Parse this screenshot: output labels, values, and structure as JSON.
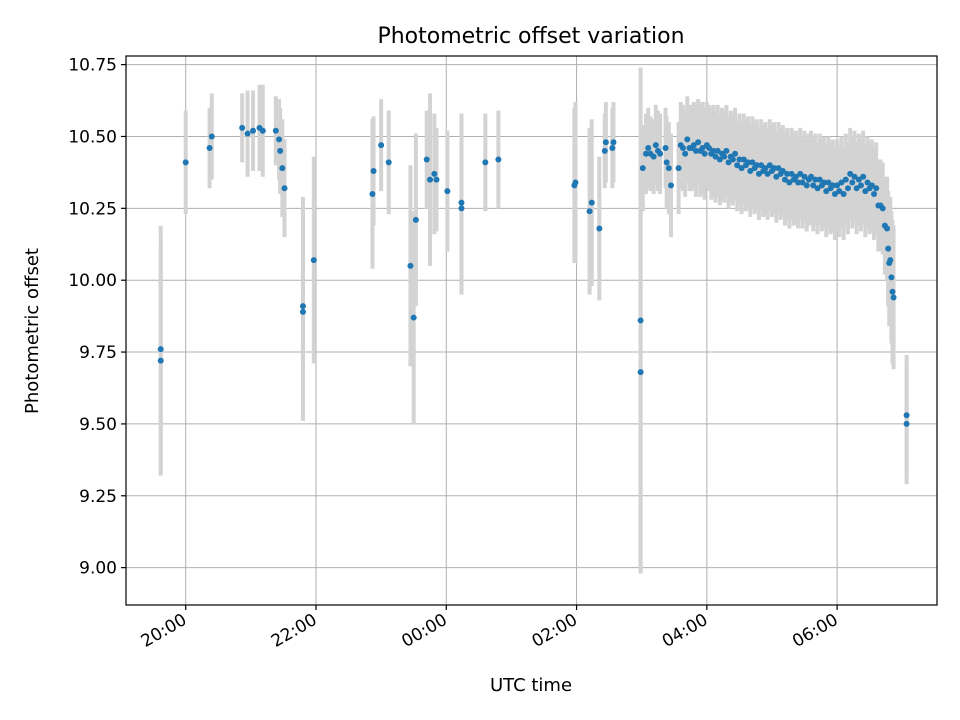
{
  "chart_data": {
    "type": "scatter",
    "title": "Photometric offset variation",
    "xlabel": "UTC time",
    "ylabel": "Photometric offset",
    "grid": true,
    "x_unit": "UTC time (HH:MM, spanning two nights: 19:00 to 07:30)",
    "xlim": [
      "19:05",
      "07:32"
    ],
    "ylim": [
      8.87,
      10.78
    ],
    "x_ticks": [
      "20:00",
      "22:00",
      "00:00",
      "02:00",
      "04:00",
      "06:00"
    ],
    "y_ticks": [
      "9.00",
      "9.25",
      "9.50",
      "9.75",
      "10.00",
      "10.25",
      "10.50",
      "10.75"
    ],
    "marker_color": "#1f77b4",
    "errorbar_color": "#d3d3d3",
    "series": [
      {
        "points": [
          [
            "19:37",
            9.76,
            0.43
          ],
          [
            "19:37",
            9.72,
            0.4
          ],
          [
            "20:00",
            10.41,
            0.18
          ],
          [
            "20:22",
            10.46,
            0.14
          ],
          [
            "20:24",
            10.5,
            0.15
          ],
          [
            "20:52",
            10.53,
            0.12
          ],
          [
            "20:57",
            10.51,
            0.15
          ],
          [
            "21:02",
            10.52,
            0.14
          ],
          [
            "21:08",
            10.53,
            0.15
          ],
          [
            "21:11",
            10.52,
            0.16
          ],
          [
            "21:23",
            10.52,
            0.12
          ],
          [
            "21:26",
            10.49,
            0.14
          ],
          [
            "21:27",
            10.45,
            0.15
          ],
          [
            "21:29",
            10.39,
            0.17
          ],
          [
            "21:31",
            10.32,
            0.17
          ],
          [
            "21:48",
            9.89,
            0.38
          ],
          [
            "21:48",
            9.91,
            0.38
          ],
          [
            "21:58",
            10.07,
            0.36
          ],
          [
            "22:52",
            10.3,
            0.26
          ],
          [
            "22:53",
            10.38,
            0.19
          ],
          [
            "23:00",
            10.47,
            0.16
          ],
          [
            "23:07",
            10.41,
            0.18
          ],
          [
            "23:27",
            10.05,
            0.35
          ],
          [
            "23:30",
            9.87,
            0.37
          ],
          [
            "23:32",
            10.21,
            0.3
          ],
          [
            "23:42",
            10.42,
            0.17
          ],
          [
            "23:45",
            10.35,
            0.3
          ],
          [
            "23:49",
            10.37,
            0.21
          ],
          [
            "23:51",
            10.35,
            0.18
          ],
          [
            "00:01",
            10.31,
            0.21
          ],
          [
            "00:14",
            10.27,
            0.31
          ],
          [
            "00:14",
            10.25,
            0.3
          ],
          [
            "00:36",
            10.41,
            0.17
          ],
          [
            "00:48",
            10.42,
            0.17
          ],
          [
            "01:58",
            10.33,
            0.27
          ],
          [
            "01:59",
            10.34,
            0.28
          ],
          [
            "02:12",
            10.24,
            0.29
          ],
          [
            "02:14",
            10.27,
            0.29
          ],
          [
            "02:21",
            10.18,
            0.25
          ],
          [
            "02:26",
            10.45,
            0.13
          ],
          [
            "02:27",
            10.48,
            0.14
          ],
          [
            "02:33",
            10.46,
            0.14
          ],
          [
            "02:34",
            10.48,
            0.14
          ],
          [
            "02:59",
            9.86,
            0.88
          ],
          [
            "02:59",
            9.68,
            0.7
          ],
          [
            "03:01",
            10.39,
            0.15
          ],
          [
            "03:04",
            10.44,
            0.14
          ],
          [
            "03:06",
            10.46,
            0.14
          ],
          [
            "03:08",
            10.44,
            0.13
          ],
          [
            "03:11",
            10.43,
            0.13
          ],
          [
            "03:13",
            10.47,
            0.14
          ],
          [
            "03:15",
            10.45,
            0.14
          ],
          [
            "03:17",
            10.44,
            0.14
          ],
          [
            "03:22",
            10.46,
            0.14
          ],
          [
            "03:23",
            10.41,
            0.16
          ],
          [
            "03:25",
            10.39,
            0.16
          ],
          [
            "03:27",
            10.33,
            0.18
          ],
          [
            "03:34",
            10.39,
            0.16
          ],
          [
            "03:36",
            10.47,
            0.15
          ],
          [
            "03:38",
            10.46,
            0.15
          ],
          [
            "03:40",
            10.44,
            0.15
          ],
          [
            "03:42",
            10.49,
            0.15
          ],
          [
            "03:44",
            10.46,
            0.15
          ],
          [
            "03:46",
            10.46,
            0.15
          ],
          [
            "03:48",
            10.47,
            0.15
          ],
          [
            "03:50",
            10.45,
            0.16
          ],
          [
            "03:52",
            10.48,
            0.15
          ],
          [
            "03:54",
            10.45,
            0.16
          ],
          [
            "03:56",
            10.46,
            0.16
          ],
          [
            "03:58",
            10.44,
            0.16
          ],
          [
            "04:00",
            10.47,
            0.15
          ],
          [
            "04:02",
            10.46,
            0.15
          ],
          [
            "04:04",
            10.44,
            0.16
          ],
          [
            "04:06",
            10.45,
            0.16
          ],
          [
            "04:08",
            10.43,
            0.16
          ],
          [
            "04:10",
            10.45,
            0.16
          ],
          [
            "04:12",
            10.42,
            0.16
          ],
          [
            "04:14",
            10.44,
            0.16
          ],
          [
            "04:16",
            10.43,
            0.16
          ],
          [
            "04:18",
            10.45,
            0.16
          ],
          [
            "04:20",
            10.41,
            0.16
          ],
          [
            "04:22",
            10.43,
            0.16
          ],
          [
            "04:24",
            10.42,
            0.16
          ],
          [
            "04:26",
            10.44,
            0.16
          ],
          [
            "04:28",
            10.4,
            0.16
          ],
          [
            "04:30",
            10.42,
            0.16
          ],
          [
            "04:32",
            10.39,
            0.16
          ],
          [
            "04:34",
            10.42,
            0.16
          ],
          [
            "04:36",
            10.4,
            0.16
          ],
          [
            "04:38",
            10.41,
            0.16
          ],
          [
            "04:40",
            10.38,
            0.16
          ],
          [
            "04:42",
            10.41,
            0.16
          ],
          [
            "04:44",
            10.39,
            0.16
          ],
          [
            "04:46",
            10.4,
            0.16
          ],
          [
            "04:48",
            10.37,
            0.16
          ],
          [
            "04:50",
            10.4,
            0.16
          ],
          [
            "04:52",
            10.38,
            0.16
          ],
          [
            "04:54",
            10.39,
            0.16
          ],
          [
            "04:56",
            10.37,
            0.16
          ],
          [
            "04:58",
            10.4,
            0.16
          ],
          [
            "05:00",
            10.38,
            0.16
          ],
          [
            "05:02",
            10.39,
            0.16
          ],
          [
            "05:04",
            10.36,
            0.16
          ],
          [
            "05:06",
            10.39,
            0.16
          ],
          [
            "05:08",
            10.37,
            0.16
          ],
          [
            "05:10",
            10.38,
            0.16
          ],
          [
            "05:12",
            10.35,
            0.16
          ],
          [
            "05:14",
            10.37,
            0.16
          ],
          [
            "05:16",
            10.34,
            0.16
          ],
          [
            "05:18",
            10.37,
            0.16
          ],
          [
            "05:20",
            10.35,
            0.16
          ],
          [
            "05:22",
            10.36,
            0.16
          ],
          [
            "05:24",
            10.34,
            0.16
          ],
          [
            "05:26",
            10.37,
            0.16
          ],
          [
            "05:28",
            10.34,
            0.16
          ],
          [
            "05:30",
            10.36,
            0.16
          ],
          [
            "05:32",
            10.33,
            0.16
          ],
          [
            "05:34",
            10.35,
            0.16
          ],
          [
            "05:36",
            10.36,
            0.16
          ],
          [
            "05:38",
            10.33,
            0.16
          ],
          [
            "05:40",
            10.35,
            0.16
          ],
          [
            "05:42",
            10.32,
            0.16
          ],
          [
            "05:44",
            10.35,
            0.16
          ],
          [
            "05:46",
            10.33,
            0.16
          ],
          [
            "05:48",
            10.34,
            0.16
          ],
          [
            "05:50",
            10.31,
            0.16
          ],
          [
            "05:52",
            10.34,
            0.16
          ],
          [
            "05:54",
            10.32,
            0.16
          ],
          [
            "05:56",
            10.33,
            0.16
          ],
          [
            "05:58",
            10.3,
            0.16
          ],
          [
            "06:00",
            10.33,
            0.16
          ],
          [
            "06:02",
            10.31,
            0.16
          ],
          [
            "06:04",
            10.34,
            0.16
          ],
          [
            "06:06",
            10.3,
            0.16
          ],
          [
            "06:08",
            10.35,
            0.16
          ],
          [
            "06:10",
            10.32,
            0.16
          ],
          [
            "06:12",
            10.37,
            0.16
          ],
          [
            "06:14",
            10.34,
            0.16
          ],
          [
            "06:16",
            10.36,
            0.16
          ],
          [
            "06:18",
            10.32,
            0.16
          ],
          [
            "06:20",
            10.35,
            0.16
          ],
          [
            "06:22",
            10.33,
            0.16
          ],
          [
            "06:24",
            10.36,
            0.16
          ],
          [
            "06:26",
            10.31,
            0.16
          ],
          [
            "06:28",
            10.34,
            0.16
          ],
          [
            "06:30",
            10.32,
            0.16
          ],
          [
            "06:32",
            10.33,
            0.16
          ],
          [
            "06:34",
            10.3,
            0.16
          ],
          [
            "06:36",
            10.32,
            0.16
          ],
          [
            "06:38",
            10.26,
            0.16
          ],
          [
            "06:40",
            10.26,
            0.16
          ],
          [
            "06:42",
            10.25,
            0.16
          ],
          [
            "06:44",
            10.19,
            0.17
          ],
          [
            "06:46",
            10.18,
            0.18
          ],
          [
            "06:47",
            10.11,
            0.2
          ],
          [
            "06:48",
            10.06,
            0.22
          ],
          [
            "06:49",
            10.07,
            0.22
          ],
          [
            "06:50",
            10.01,
            0.23
          ],
          [
            "06:51",
            9.96,
            0.25
          ],
          [
            "06:52",
            9.94,
            0.25
          ],
          [
            "07:04",
            9.53,
            0.21
          ],
          [
            "07:04",
            9.5,
            0.21
          ]
        ]
      }
    ]
  }
}
